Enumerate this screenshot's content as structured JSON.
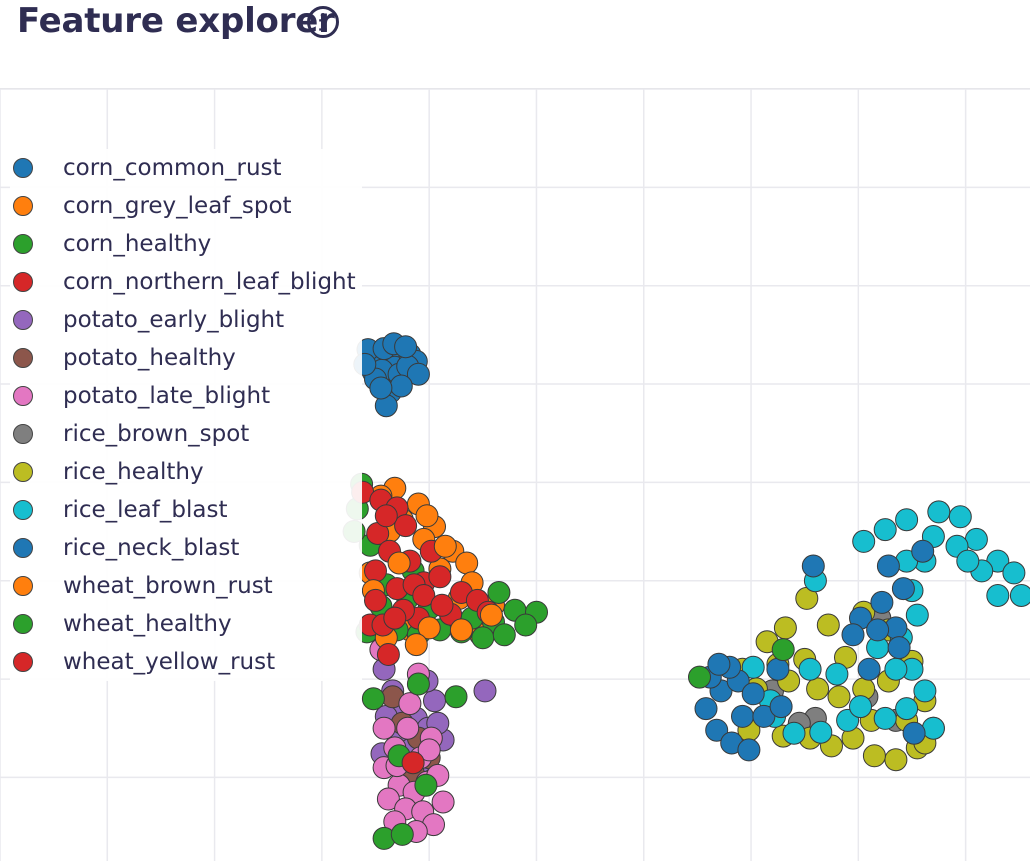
{
  "header": {
    "title": "Feature explorer",
    "info_icon": "info-circle-icon"
  },
  "chart_data": {
    "type": "scatter",
    "title": "",
    "xlabel": "",
    "ylabel": "",
    "xlim": [
      -3.0,
      6.6
    ],
    "ylim": [
      -0.85,
      7.0
    ],
    "grid": true,
    "legend_placement": "left",
    "series": [
      {
        "name": "corn_common_rust",
        "color": "#1f77b4",
        "points": [
          [
            0.56,
            4.25
          ],
          [
            0.53,
            4.3
          ],
          [
            0.6,
            4.27
          ],
          [
            0.45,
            4.23
          ],
          [
            0.7,
            4.32
          ],
          [
            0.76,
            4.28
          ],
          [
            0.48,
            4.12
          ],
          [
            0.62,
            4.02
          ],
          [
            0.68,
            4.17
          ],
          [
            0.56,
            4.14
          ],
          [
            0.72,
            4.1
          ],
          [
            0.82,
            4.3
          ],
          [
            0.43,
            4.35
          ],
          [
            0.64,
            3.92
          ],
          [
            0.6,
            3.78
          ],
          [
            0.58,
            4.36
          ],
          [
            0.88,
            4.23
          ],
          [
            0.8,
            4.18
          ],
          [
            0.5,
            4.05
          ],
          [
            0.4,
            4.2
          ],
          [
            0.67,
            4.41
          ],
          [
            0.9,
            4.1
          ],
          [
            0.74,
            3.98
          ],
          [
            0.55,
            3.96
          ],
          [
            0.78,
            4.38
          ]
        ]
      },
      {
        "name": "corn_grey_leaf_spot",
        "color": "#ff7f0e",
        "points": [
          [
            0.68,
            2.94
          ],
          [
            0.9,
            2.78
          ],
          [
            1.05,
            2.55
          ],
          [
            1.22,
            2.3
          ],
          [
            1.35,
            2.18
          ],
          [
            0.75,
            2.62
          ],
          [
            0.95,
            2.42
          ],
          [
            1.1,
            2.12
          ],
          [
            0.45,
            2.08
          ],
          [
            0.55,
            2.86
          ],
          [
            1.4,
            1.98
          ],
          [
            0.82,
            1.5
          ],
          [
            1.28,
            1.82
          ],
          [
            1.48,
            1.45
          ],
          [
            0.63,
            2.5
          ],
          [
            0.98,
            2.66
          ],
          [
            1.6,
            1.75
          ]
        ]
      },
      {
        "name": "corn_healthy",
        "color": "#2ca02c",
        "points": [
          [
            0.37,
            2.98
          ],
          [
            0.33,
            2.73
          ],
          [
            0.45,
            2.36
          ],
          [
            0.6,
            1.96
          ],
          [
            0.8,
            1.82
          ],
          [
            1.0,
            1.72
          ],
          [
            1.2,
            1.65
          ],
          [
            1.4,
            1.62
          ],
          [
            1.6,
            1.58
          ],
          [
            1.8,
            1.7
          ],
          [
            2.0,
            1.68
          ],
          [
            0.55,
            1.74
          ],
          [
            0.7,
            1.5
          ],
          [
            0.9,
            1.45
          ],
          [
            1.1,
            1.5
          ],
          [
            1.3,
            1.48
          ],
          [
            1.5,
            1.42
          ],
          [
            1.7,
            1.45
          ],
          [
            1.9,
            1.55
          ],
          [
            0.3,
            2.5
          ],
          [
            0.65,
            2.7
          ],
          [
            0.42,
            1.48
          ],
          [
            0.85,
            2.1
          ],
          [
            1.65,
            1.88
          ]
        ]
      },
      {
        "name": "corn_northern_leaf_blight",
        "color": "#d62728",
        "points": [
          [
            0.38,
            2.9
          ],
          [
            0.55,
            2.82
          ],
          [
            0.7,
            2.74
          ],
          [
            0.78,
            2.56
          ],
          [
            0.52,
            2.48
          ],
          [
            0.63,
            2.3
          ],
          [
            0.82,
            2.2
          ],
          [
            0.95,
            1.98
          ],
          [
            1.1,
            2.04
          ],
          [
            1.3,
            1.88
          ],
          [
            1.45,
            1.8
          ],
          [
            0.7,
            1.92
          ],
          [
            0.9,
            1.62
          ],
          [
            0.5,
            2.1
          ],
          [
            0.6,
            2.66
          ],
          [
            1.2,
            1.66
          ],
          [
            0.45,
            1.55
          ],
          [
            1.02,
            2.3
          ],
          [
            1.55,
            1.68
          ],
          [
            0.86,
            1.96
          ]
        ]
      },
      {
        "name": "potato_early_blight",
        "color": "#9467bd",
        "points": [
          [
            0.66,
            0.88
          ],
          [
            0.76,
            0.72
          ],
          [
            0.88,
            0.6
          ],
          [
            0.99,
            0.5
          ],
          [
            1.05,
            0.78
          ],
          [
            0.7,
            0.44
          ],
          [
            0.6,
            0.62
          ],
          [
            1.13,
            0.38
          ],
          [
            0.82,
            0.28
          ],
          [
            0.56,
            0.24
          ],
          [
            1.52,
            0.88
          ],
          [
            0.98,
            0.98
          ],
          [
            0.58,
            1.1
          ],
          [
            0.92,
            0.16
          ],
          [
            1.08,
            0.55
          ]
        ]
      },
      {
        "name": "potato_healthy",
        "color": "#8c564b",
        "points": [
          [
            0.9,
            0.4
          ],
          [
            0.75,
            0.55
          ],
          [
            1.0,
            0.2
          ],
          [
            0.66,
            0.82
          ],
          [
            0.85,
            0.05
          ]
        ]
      },
      {
        "name": "potato_late_blight",
        "color": "#e377c2",
        "points": [
          [
            0.58,
            0.1
          ],
          [
            0.68,
            0.3
          ],
          [
            0.8,
            0.5
          ],
          [
            0.92,
            0.2
          ],
          [
            1.02,
            0.4
          ],
          [
            0.72,
            -0.08
          ],
          [
            0.86,
            -0.15
          ],
          [
            0.98,
            -0.05
          ],
          [
            1.08,
            0.02
          ],
          [
            1.13,
            -0.25
          ],
          [
            0.62,
            -0.22
          ],
          [
            0.78,
            -0.32
          ],
          [
            0.94,
            -0.35
          ],
          [
            0.68,
            -0.45
          ],
          [
            1.04,
            -0.48
          ],
          [
            0.82,
            0.75
          ],
          [
            0.58,
            0.5
          ],
          [
            0.55,
            1.3
          ],
          [
            0.9,
            1.05
          ],
          [
            1.0,
            0.28
          ],
          [
            0.7,
            0.12
          ],
          [
            0.88,
            -0.55
          ]
        ]
      },
      {
        "name": "rice_brown_spot",
        "color": "#7f7f7f",
        "points": [
          [
            5.35,
            0.58
          ],
          [
            5.08,
            0.82
          ],
          [
            4.6,
            0.6
          ],
          [
            4.2,
            0.88
          ],
          [
            4.45,
            0.55
          ],
          [
            5.2,
            1.62
          ]
        ]
      },
      {
        "name": "rice_healthy",
        "color": "#bcbd22",
        "points": [
          [
            3.92,
            1.1
          ],
          [
            4.15,
            1.38
          ],
          [
            4.32,
            1.52
          ],
          [
            4.52,
            1.82
          ],
          [
            4.5,
            1.2
          ],
          [
            4.35,
            0.98
          ],
          [
            4.62,
            0.9
          ],
          [
            4.82,
            0.82
          ],
          [
            5.05,
            0.9
          ],
          [
            5.28,
            0.98
          ],
          [
            5.5,
            1.18
          ],
          [
            5.62,
            0.78
          ],
          [
            5.7,
            0.5
          ],
          [
            5.55,
            0.3
          ],
          [
            5.35,
            0.18
          ],
          [
            5.15,
            0.22
          ],
          [
            4.95,
            0.4
          ],
          [
            4.75,
            0.32
          ],
          [
            4.55,
            0.4
          ],
          [
            4.3,
            0.42
          ],
          [
            3.98,
            0.48
          ],
          [
            5.45,
            0.58
          ],
          [
            5.28,
            1.5
          ],
          [
            4.72,
            1.55
          ],
          [
            5.05,
            1.68
          ],
          [
            4.88,
            1.22
          ],
          [
            4.25,
            1.15
          ],
          [
            5.62,
            0.35
          ],
          [
            4.05,
            0.9
          ],
          [
            5.12,
            0.58
          ]
        ]
      },
      {
        "name": "rice_leaf_blast",
        "color": "#17becf",
        "points": [
          [
            5.05,
            2.4
          ],
          [
            5.25,
            2.52
          ],
          [
            5.45,
            2.62
          ],
          [
            5.75,
            2.7
          ],
          [
            5.95,
            2.65
          ],
          [
            6.1,
            2.42
          ],
          [
            6.3,
            2.2
          ],
          [
            6.45,
            2.08
          ],
          [
            6.52,
            1.85
          ],
          [
            6.3,
            1.85
          ],
          [
            6.15,
            2.1
          ],
          [
            5.92,
            2.35
          ],
          [
            5.7,
            2.45
          ],
          [
            5.62,
            2.2
          ],
          [
            5.5,
            1.9
          ],
          [
            5.55,
            1.65
          ],
          [
            5.4,
            1.42
          ],
          [
            5.5,
            1.1
          ],
          [
            5.62,
            0.88
          ],
          [
            5.45,
            0.7
          ],
          [
            5.25,
            0.6
          ],
          [
            4.9,
            0.58
          ],
          [
            4.65,
            0.46
          ],
          [
            4.4,
            0.45
          ],
          [
            4.18,
            0.78
          ],
          [
            4.02,
            1.12
          ],
          [
            4.55,
            1.1
          ],
          [
            5.35,
            1.1
          ],
          [
            5.18,
            1.32
          ],
          [
            4.22,
            0.62
          ],
          [
            5.02,
            0.72
          ],
          [
            4.8,
            1.05
          ],
          [
            5.45,
            2.2
          ],
          [
            6.02,
            2.2
          ],
          [
            5.7,
            0.5
          ],
          [
            4.6,
            2.0
          ]
        ]
      },
      {
        "name": "rice_neck_blast",
        "color": "#1f77b4",
        "points": [
          [
            3.58,
            0.7
          ],
          [
            3.72,
            0.88
          ],
          [
            3.88,
            0.98
          ],
          [
            3.68,
            0.48
          ],
          [
            3.82,
            0.35
          ],
          [
            3.98,
            0.28
          ],
          [
            3.92,
            0.62
          ],
          [
            4.12,
            0.62
          ],
          [
            4.28,
            0.72
          ],
          [
            3.62,
            1.02
          ],
          [
            3.8,
            1.12
          ],
          [
            4.02,
            0.85
          ],
          [
            5.02,
            1.62
          ],
          [
            5.22,
            1.78
          ],
          [
            5.42,
            1.92
          ],
          [
            5.35,
            1.52
          ],
          [
            5.18,
            1.5
          ],
          [
            5.28,
            2.15
          ],
          [
            5.6,
            2.3
          ],
          [
            5.38,
            1.32
          ],
          [
            4.95,
            1.45
          ],
          [
            5.52,
            0.45
          ],
          [
            4.25,
            1.1
          ],
          [
            5.1,
            1.1
          ],
          [
            4.58,
            2.15
          ],
          [
            3.7,
            1.15
          ]
        ]
      },
      {
        "name": "wheat_brown_rust",
        "color": "#ff7f0e",
        "points": [
          [
            0.6,
            1.42
          ],
          [
            1.0,
            1.52
          ],
          [
            1.3,
            1.5
          ],
          [
            0.48,
            1.9
          ],
          [
            1.15,
            2.35
          ],
          [
            0.72,
            2.18
          ],
          [
            0.88,
            1.35
          ],
          [
            1.58,
            1.65
          ]
        ]
      },
      {
        "name": "wheat_healthy",
        "color": "#2ca02c",
        "points": [
          [
            0.72,
            0.22
          ],
          [
            0.97,
            -0.08
          ],
          [
            0.58,
            -0.62
          ],
          [
            0.75,
            -0.58
          ],
          [
            3.52,
            1.02
          ],
          [
            4.3,
            1.3
          ],
          [
            0.48,
            0.8
          ],
          [
            0.9,
            0.95
          ],
          [
            1.25,
            0.82
          ]
        ]
      },
      {
        "name": "wheat_yellow_rust",
        "color": "#d62728",
        "points": [
          [
            0.57,
            1.55
          ],
          [
            0.76,
            1.7
          ],
          [
            0.85,
            0.15
          ],
          [
            0.5,
            1.8
          ],
          [
            0.95,
            1.85
          ],
          [
            1.12,
            1.75
          ],
          [
            0.62,
            1.25
          ],
          [
            0.68,
            1.62
          ]
        ]
      }
    ]
  }
}
